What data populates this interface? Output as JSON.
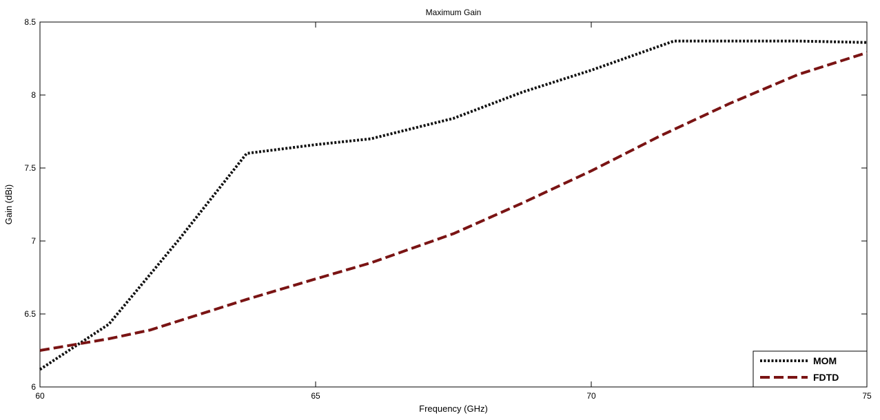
{
  "chart_data": {
    "type": "line",
    "title": "Maximum Gain",
    "xlabel": "Frequency  (GHz)",
    "ylabel": "Gain (dBi)",
    "xlim": [
      60,
      75
    ],
    "ylim": [
      6,
      8.5
    ],
    "xticks": [
      60,
      65,
      70,
      75
    ],
    "yticks": [
      6,
      6.5,
      7,
      7.5,
      8,
      8.5
    ],
    "grid": false,
    "legend_position": "bottom-right",
    "series": [
      {
        "name": "MOM",
        "style": "dotted",
        "color": "#111111",
        "x": [
          60,
          61.25,
          62.5,
          63.75,
          65,
          66,
          67.5,
          68.75,
          70,
          71.5,
          72.5,
          73.75,
          75
        ],
        "y": [
          6.12,
          6.43,
          7.0,
          7.6,
          7.66,
          7.7,
          7.84,
          8.02,
          8.17,
          8.37,
          8.37,
          8.37,
          8.36
        ]
      },
      {
        "name": "FDTD",
        "style": "dashed",
        "color": "#7a1414",
        "x": [
          60,
          61.25,
          62,
          63.75,
          65,
          66,
          67.5,
          68.75,
          70,
          71.25,
          72.5,
          73.75,
          75
        ],
        "y": [
          6.25,
          6.33,
          6.39,
          6.6,
          6.74,
          6.85,
          7.05,
          7.26,
          7.48,
          7.72,
          7.94,
          8.14,
          8.29
        ]
      }
    ]
  }
}
